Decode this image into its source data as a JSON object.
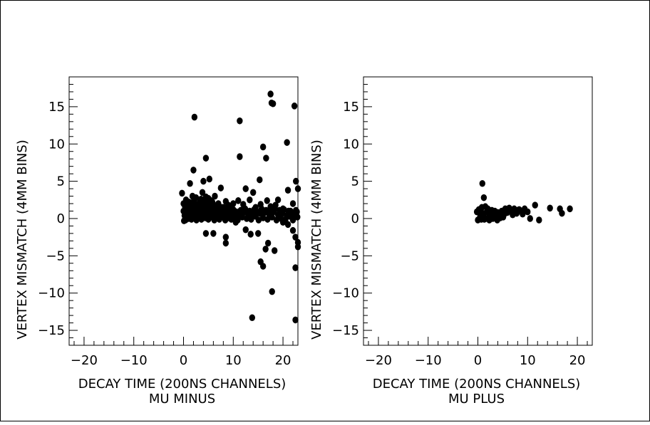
{
  "chart_data": [
    {
      "type": "scatter",
      "xlabel": "DECAY TIME (200NS CHANNELS)",
      "subtitle": "MU MINUS",
      "ylabel": "VERTEX MISMATCH (4MM BINS)",
      "xlim": [
        -23,
        23
      ],
      "ylim": [
        -17,
        19
      ],
      "xticks": [
        -20,
        -10,
        0,
        10,
        20
      ],
      "yticks": [
        -15,
        -10,
        -5,
        0,
        5,
        10,
        15
      ],
      "tick_labels_x": [
        "−20",
        "−10",
        "0",
        "10",
        "20"
      ],
      "tick_labels_y": [
        "−15",
        "−10",
        "−5",
        "0",
        "5",
        "10",
        "15"
      ],
      "points": [
        [
          2.2,
          13.6
        ],
        [
          11.3,
          13.1
        ],
        [
          17.5,
          16.7
        ],
        [
          17.7,
          15.5
        ],
        [
          18.0,
          15.4
        ],
        [
          22.3,
          15.1
        ],
        [
          16.0,
          9.6
        ],
        [
          16.6,
          8.1
        ],
        [
          11.3,
          8.3
        ],
        [
          4.5,
          8.1
        ],
        [
          20.8,
          10.2
        ],
        [
          2.0,
          6.5
        ],
        [
          4.0,
          5.0
        ],
        [
          5.2,
          5.3
        ],
        [
          1.3,
          4.7
        ],
        [
          7.5,
          4.1
        ],
        [
          -0.3,
          3.4
        ],
        [
          15.3,
          5.2
        ],
        [
          22.6,
          5.0
        ],
        [
          23.0,
          4.0
        ],
        [
          21.0,
          3.8
        ],
        [
          12.5,
          4.0
        ],
        [
          13.3,
          2.5
        ],
        [
          14.0,
          3.5
        ],
        [
          16.8,
          2.4
        ],
        [
          19.0,
          2.5
        ],
        [
          22.0,
          2.0
        ],
        [
          10.0,
          2.0
        ],
        [
          8.5,
          2.3
        ],
        [
          0.0,
          2.0
        ],
        [
          0.5,
          2.5
        ],
        [
          1.0,
          1.8
        ],
        [
          1.8,
          3.0
        ],
        [
          2.5,
          2.8
        ],
        [
          3.2,
          2.1
        ],
        [
          3.8,
          3.5
        ],
        [
          4.3,
          2.4
        ],
        [
          5.0,
          2.7
        ],
        [
          5.8,
          2.2
        ],
        [
          6.3,
          3.0
        ],
        [
          7.0,
          2.0
        ],
        [
          8.0,
          1.5
        ],
        [
          9.0,
          1.8
        ],
        [
          11.0,
          2.4
        ],
        [
          12.0,
          1.9
        ],
        [
          14.5,
          1.5
        ],
        [
          15.5,
          1.9
        ],
        [
          17.5,
          1.6
        ],
        [
          18.5,
          1.8
        ],
        [
          20.0,
          1.3
        ],
        [
          21.5,
          1.0
        ],
        [
          22.8,
          0.9
        ],
        [
          0.0,
          1.0
        ],
        [
          0.2,
          0.4
        ],
        [
          0.4,
          -0.2
        ],
        [
          0.6,
          1.3
        ],
        [
          0.8,
          0.6
        ],
        [
          1.0,
          0.0
        ],
        [
          1.2,
          1.1
        ],
        [
          1.4,
          0.3
        ],
        [
          1.6,
          -0.1
        ],
        [
          1.8,
          0.9
        ],
        [
          2.0,
          0.2
        ],
        [
          2.2,
          1.4
        ],
        [
          2.4,
          0.5
        ],
        [
          2.6,
          -0.2
        ],
        [
          2.8,
          1.0
        ],
        [
          3.0,
          0.3
        ],
        [
          3.2,
          1.6
        ],
        [
          3.4,
          0.7
        ],
        [
          3.6,
          -0.1
        ],
        [
          3.8,
          1.2
        ],
        [
          4.0,
          0.4
        ],
        [
          4.2,
          1.7
        ],
        [
          4.4,
          0.1
        ],
        [
          4.6,
          0.9
        ],
        [
          4.8,
          1.4
        ],
        [
          5.0,
          -0.1
        ],
        [
          5.2,
          0.6
        ],
        [
          5.4,
          1.1
        ],
        [
          5.6,
          0.2
        ],
        [
          5.8,
          1.5
        ],
        [
          6.0,
          0.5
        ],
        [
          6.2,
          -0.2
        ],
        [
          6.4,
          1.0
        ],
        [
          6.6,
          0.3
        ],
        [
          6.8,
          1.3
        ],
        [
          7.0,
          0.6
        ],
        [
          7.2,
          -0.1
        ],
        [
          7.4,
          0.9
        ],
        [
          7.6,
          1.5
        ],
        [
          7.8,
          0.2
        ],
        [
          8.0,
          0.7
        ],
        [
          8.2,
          1.2
        ],
        [
          8.4,
          -0.2
        ],
        [
          8.6,
          0.4
        ],
        [
          8.8,
          1.0
        ],
        [
          9.0,
          0.1
        ],
        [
          9.2,
          1.4
        ],
        [
          9.4,
          0.6
        ],
        [
          9.6,
          -0.1
        ],
        [
          9.8,
          0.8
        ],
        [
          10.0,
          1.2
        ],
        [
          10.3,
          0.3
        ],
        [
          10.6,
          0.9
        ],
        [
          10.9,
          -0.2
        ],
        [
          11.2,
          0.5
        ],
        [
          11.5,
          1.1
        ],
        [
          11.8,
          0.2
        ],
        [
          12.1,
          0.8
        ],
        [
          12.4,
          1.3
        ],
        [
          12.7,
          0.0
        ],
        [
          13.0,
          0.6
        ],
        [
          13.3,
          1.0
        ],
        [
          13.6,
          -0.1
        ],
        [
          13.9,
          0.5
        ],
        [
          14.2,
          1.2
        ],
        [
          14.5,
          0.3
        ],
        [
          14.8,
          0.9
        ],
        [
          15.1,
          -0.2
        ],
        [
          15.4,
          0.7
        ],
        [
          15.7,
          1.3
        ],
        [
          16.0,
          0.1
        ],
        [
          16.3,
          0.8
        ],
        [
          16.6,
          1.1
        ],
        [
          16.9,
          -0.1
        ],
        [
          17.2,
          0.6
        ],
        [
          17.5,
          1.0
        ],
        [
          17.8,
          0.2
        ],
        [
          18.1,
          0.9
        ],
        [
          18.4,
          1.3
        ],
        [
          18.7,
          -0.2
        ],
        [
          19.0,
          0.5
        ],
        [
          19.3,
          1.1
        ],
        [
          19.6,
          0.0
        ],
        [
          19.9,
          0.7
        ],
        [
          20.2,
          1.2
        ],
        [
          20.5,
          -0.1
        ],
        [
          20.8,
          0.4
        ],
        [
          21.1,
          1.0
        ],
        [
          21.4,
          0.3
        ],
        [
          21.7,
          0.8
        ],
        [
          22.0,
          -0.2
        ],
        [
          22.3,
          0.6
        ],
        [
          22.6,
          1.1
        ],
        [
          22.9,
          0.2
        ],
        [
          0.1,
          -0.3
        ],
        [
          1.1,
          2.2
        ],
        [
          2.1,
          2.4
        ],
        [
          3.1,
          1.9
        ],
        [
          4.1,
          2.2
        ],
        [
          5.1,
          2.0
        ],
        [
          6.1,
          1.8
        ],
        [
          0.3,
          1.6
        ],
        [
          0.7,
          2.3
        ],
        [
          1.5,
          1.7
        ],
        [
          2.3,
          2.0
        ],
        [
          3.5,
          2.6
        ],
        [
          4.5,
          2.9
        ],
        [
          5.5,
          2.4
        ],
        [
          4.5,
          -2.0
        ],
        [
          6.0,
          -2.0
        ],
        [
          8.5,
          -2.5
        ],
        [
          8.5,
          -3.3
        ],
        [
          12.5,
          -1.5
        ],
        [
          13.5,
          -2.1
        ],
        [
          15.0,
          -2.0
        ],
        [
          16.5,
          -4.1
        ],
        [
          17.0,
          -3.3
        ],
        [
          18.3,
          -4.3
        ],
        [
          22.0,
          -1.6
        ],
        [
          22.5,
          -2.5
        ],
        [
          23.0,
          -3.2
        ],
        [
          23.0,
          -3.8
        ],
        [
          15.5,
          -5.8
        ],
        [
          16.0,
          -6.4
        ],
        [
          22.5,
          -6.6
        ],
        [
          17.8,
          -9.8
        ],
        [
          13.8,
          -13.3
        ],
        [
          22.5,
          -13.6
        ],
        [
          10.5,
          -0.5
        ],
        [
          20.0,
          -0.5
        ],
        [
          21.0,
          -0.8
        ]
      ]
    },
    {
      "type": "scatter",
      "xlabel": "DECAY TIME (200NS CHANNELS)",
      "subtitle": "MU PLUS",
      "ylabel": "VERTEX MISMATCH (4MM BINS)",
      "xlim": [
        -23,
        23
      ],
      "ylim": [
        -17,
        19
      ],
      "xticks": [
        -20,
        -10,
        0,
        10,
        20
      ],
      "yticks": [
        -15,
        -10,
        -5,
        0,
        5,
        10,
        15
      ],
      "tick_labels_x": [
        "−20",
        "−10",
        "0",
        "10",
        "20"
      ],
      "tick_labels_y": [
        "−15",
        "−10",
        "−5",
        "0",
        "5",
        "10",
        "15"
      ],
      "points": [
        [
          0.9,
          4.7
        ],
        [
          1.2,
          2.8
        ],
        [
          -0.2,
          0.9
        ],
        [
          0.2,
          1.2
        ],
        [
          0.5,
          0.4
        ],
        [
          0.8,
          1.5
        ],
        [
          1.0,
          0.7
        ],
        [
          1.3,
          -0.1
        ],
        [
          1.5,
          1.6
        ],
        [
          1.8,
          0.9
        ],
        [
          2.0,
          1.3
        ],
        [
          2.2,
          0.2
        ],
        [
          2.5,
          0.8
        ],
        [
          2.8,
          1.1
        ],
        [
          3.0,
          0.0
        ],
        [
          3.3,
          0.6
        ],
        [
          3.6,
          0.3
        ],
        [
          3.9,
          -0.2
        ],
        [
          4.2,
          0.5
        ],
        [
          4.5,
          0.1
        ],
        [
          4.8,
          1.0
        ],
        [
          5.1,
          0.2
        ],
        [
          5.5,
          1.3
        ],
        [
          5.9,
          0.8
        ],
        [
          6.3,
          1.4
        ],
        [
          6.8,
          0.9
        ],
        [
          7.3,
          1.3
        ],
        [
          7.8,
          0.7
        ],
        [
          8.3,
          1.2
        ],
        [
          8.8,
          1.0
        ],
        [
          9.4,
          1.3
        ],
        [
          10.0,
          0.9
        ],
        [
          10.5,
          0.0
        ],
        [
          11.5,
          1.8
        ],
        [
          12.3,
          -0.2
        ],
        [
          14.5,
          1.4
        ],
        [
          16.5,
          1.3
        ],
        [
          16.9,
          0.7
        ],
        [
          18.5,
          1.3
        ],
        [
          0.0,
          -0.2
        ],
        [
          0.4,
          0.1
        ],
        [
          0.7,
          -0.1
        ],
        [
          1.1,
          0.3
        ],
        [
          1.6,
          0.0
        ],
        [
          2.3,
          -0.2
        ],
        [
          2.7,
          0.4
        ],
        [
          3.4,
          1.0
        ],
        [
          4.0,
          0.8
        ],
        [
          5.3,
          0.6
        ],
        [
          6.0,
          1.0
        ],
        [
          7.0,
          0.5
        ],
        [
          8.0,
          1.1
        ],
        [
          9.0,
          0.6
        ]
      ]
    }
  ]
}
